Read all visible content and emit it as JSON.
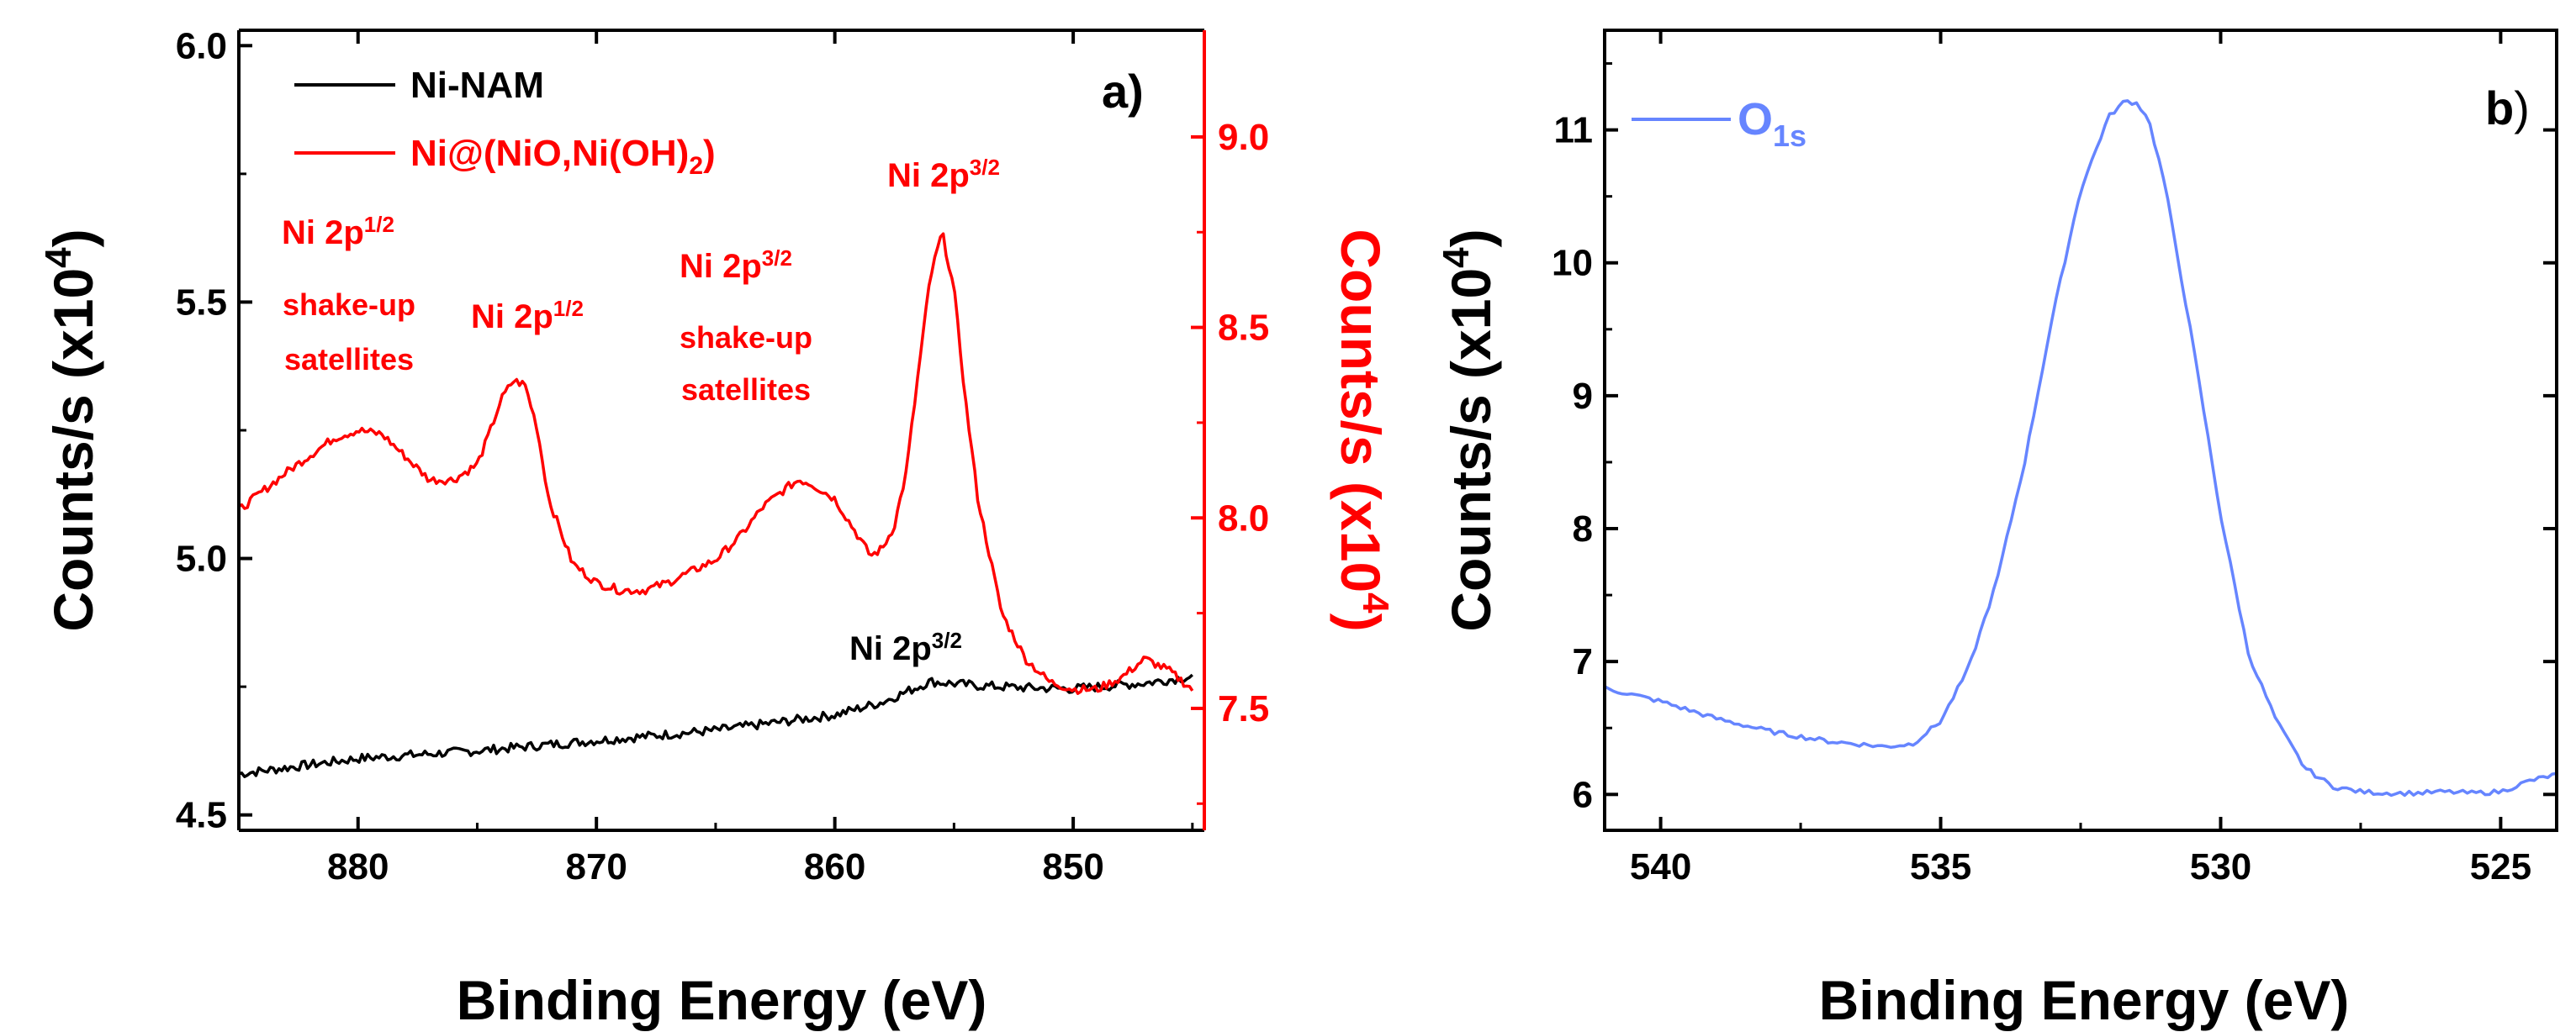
{
  "chart_data": [
    {
      "panel": "a",
      "panel_label": "a)",
      "type": "line",
      "xlabel": "Binding Energy (eV)",
      "ylabel_left": "Counts/s (x10",
      "ylabel_left_exp": "4",
      "ylabel_left_close": ")",
      "ylabel_right": "Counts/s (x10",
      "ylabel_right_exp": "4",
      "ylabel_right_close": ")",
      "xlim": [
        885,
        844.5
      ],
      "ylim_left": [
        4.47,
        6.03
      ],
      "ylim_right": [
        7.18,
        9.28
      ],
      "x_ticks": [
        880,
        870,
        860,
        850
      ],
      "y_ticks_left": [
        4.5,
        5.0,
        5.5,
        6.0
      ],
      "y_ticks_right": [
        7.5,
        8.0,
        8.5,
        9.0
      ],
      "colors": {
        "black": "#000000",
        "red": "#ff0000",
        "blue": "#6685ff"
      },
      "series": [
        {
          "name": "Ni-NAM",
          "axis": "left",
          "color": "#000000",
          "x": [
            885,
            880,
            875,
            870,
            865,
            860,
            858,
            856,
            854,
            852,
            850,
            847,
            845
          ],
          "y": [
            4.58,
            4.61,
            4.625,
            4.645,
            4.665,
            4.695,
            4.72,
            4.76,
            4.752,
            4.748,
            4.746,
            4.757,
            4.77
          ]
        },
        {
          "name": "Ni@(NiO,Ni(OH)",
          "name_sub": "2",
          "name_close": ")",
          "axis": "right",
          "color": "#ff0000",
          "x": [
            885,
            883,
            881,
            880,
            879,
            878,
            877,
            876,
            875,
            874.5,
            874,
            873.5,
            873,
            872.5,
            872,
            871,
            870,
            869,
            868,
            867,
            866,
            865,
            864,
            863,
            862,
            861.5,
            861,
            860,
            859,
            858.5,
            858,
            857.5,
            857,
            856.5,
            856,
            855.5,
            855,
            854.5,
            854,
            853,
            852,
            851,
            850,
            849,
            848,
            847,
            846,
            845
          ],
          "y": [
            8.02,
            8.12,
            8.21,
            8.23,
            8.22,
            8.16,
            8.1,
            8.1,
            8.14,
            8.22,
            8.31,
            8.36,
            8.35,
            8.24,
            8.05,
            7.88,
            7.83,
            7.81,
            7.81,
            7.83,
            7.86,
            7.89,
            7.95,
            8.03,
            8.08,
            8.1,
            8.09,
            8.05,
            7.95,
            7.9,
            7.92,
            7.98,
            8.12,
            8.38,
            8.63,
            8.75,
            8.6,
            8.3,
            8.05,
            7.75,
            7.63,
            7.57,
            7.55,
            7.55,
            7.58,
            7.63,
            7.6,
            7.55
          ]
        }
      ],
      "annotations": {
        "black_peak": {
          "x": 856.5,
          "y": 4.82,
          "axis": "left",
          "text": "Ni 2p",
          "sup": "3/2"
        },
        "red_main": {
          "x": 856,
          "y": 8.92,
          "axis": "right",
          "text": "Ni 2p",
          "sup": "3/2"
        },
        "red_sat_32": {
          "x": 861,
          "y": 8.6,
          "axis": "right",
          "text": "Ni 2p",
          "sup": "3/2",
          "line2": "shake-up",
          "line3": "satellites"
        },
        "red_12": {
          "x": 873.5,
          "y": 8.48,
          "axis": "right",
          "text": "Ni 2p",
          "sup": "1/2"
        },
        "red_sat_12": {
          "x": 881,
          "y": 8.7,
          "axis": "right",
          "text": "Ni 2p",
          "sup": "1/2",
          "line2": "shake-up",
          "line3": "satellites"
        }
      }
    },
    {
      "panel": "b",
      "panel_label": "b",
      "panel_paren": ")",
      "type": "line",
      "xlabel": "Binding Energy (eV)",
      "ylabel": "Counts/s (x10",
      "ylabel_exp": "4",
      "ylabel_close": ")",
      "xlim": [
        541,
        524
      ],
      "ylim": [
        5.73,
        11.75
      ],
      "x_ticks": [
        540,
        535,
        530,
        525
      ],
      "y_ticks": [
        6,
        7,
        8,
        9,
        10,
        11
      ],
      "series": [
        {
          "name": "O",
          "name_sub": "1s",
          "color": "#6685ff",
          "x": [
            541,
            540,
            539,
            538,
            537,
            536,
            535.5,
            535,
            534.5,
            534,
            533.5,
            533,
            532.5,
            532,
            531.7,
            531.5,
            531.3,
            531,
            530.5,
            530,
            529.5,
            529,
            528.5,
            528,
            527.5,
            527,
            526.5,
            526,
            525.5,
            525,
            524.5,
            524
          ],
          "y": [
            6.8,
            6.7,
            6.57,
            6.47,
            6.4,
            6.36,
            6.38,
            6.55,
            6.95,
            7.6,
            8.5,
            9.6,
            10.55,
            11.1,
            11.22,
            11.2,
            11.1,
            10.6,
            9.4,
            8.1,
            7.05,
            6.55,
            6.2,
            6.06,
            6.02,
            6.01,
            6.01,
            6.02,
            6.01,
            6.02,
            6.1,
            6.15
          ]
        }
      ]
    }
  ]
}
